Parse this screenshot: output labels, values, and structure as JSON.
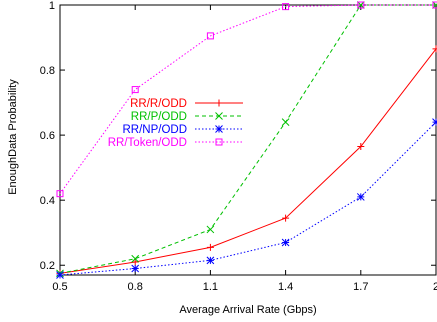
{
  "chart_data": {
    "type": "line",
    "xlabel": "Average Arrival Rate (Gbps)",
    "ylabel": "EnoughData Probability",
    "x": [
      0.5,
      0.8,
      1.1,
      1.4,
      1.7,
      2.0
    ],
    "xticks": [
      "0.5",
      "0.8",
      "1.1",
      "1.4",
      "1.7",
      "2"
    ],
    "yticks": [
      "0.2",
      "0.4",
      "0.6",
      "0.8",
      "1"
    ],
    "xlim": [
      0.5,
      2.0
    ],
    "ylim": [
      0.17,
      1.0
    ],
    "grid": false,
    "legend_position": "center",
    "series": [
      {
        "name": "RR/R/ODD",
        "color": "#ff0000",
        "marker": "plus",
        "dash": "solid",
        "values": [
          0.175,
          0.21,
          0.255,
          0.345,
          0.565,
          0.865
        ]
      },
      {
        "name": "RR/P/ODD",
        "color": "#00c000",
        "marker": "cross",
        "dash": "dashed",
        "values": [
          0.175,
          0.22,
          0.31,
          0.64,
          1.0,
          1.0
        ]
      },
      {
        "name": "RR/NP/ODD",
        "color": "#0000ff",
        "marker": "star",
        "dash": "dotted",
        "values": [
          0.17,
          0.19,
          0.215,
          0.27,
          0.41,
          0.64
        ]
      },
      {
        "name": "RR/Token/ODD",
        "color": "#ff00ff",
        "marker": "square",
        "dash": "dotted",
        "values": [
          0.42,
          0.74,
          0.905,
          0.995,
          1.0,
          1.0
        ]
      }
    ]
  }
}
